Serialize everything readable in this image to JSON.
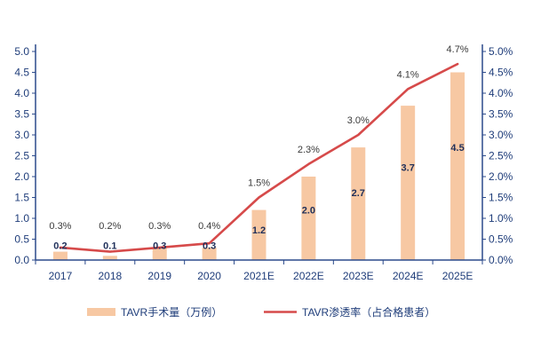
{
  "chart_data": {
    "type": "bar",
    "categories": [
      "2017",
      "2018",
      "2019",
      "2020",
      "2021E",
      "2022E",
      "2023E",
      "2024E",
      "2025E"
    ],
    "series": [
      {
        "name": "TAVR手术量（万例）",
        "type": "bar",
        "axis": "left",
        "values": [
          0.2,
          0.1,
          0.3,
          0.3,
          1.2,
          2.0,
          2.7,
          3.7,
          4.5
        ],
        "labels": [
          "0.2",
          "0.1",
          "0.3",
          "0.3",
          "1.2",
          "2.0",
          "2.7",
          "3.7",
          "4.5"
        ],
        "color": "#f7c8a3"
      },
      {
        "name": "TAVR渗透率（占合格患者）",
        "type": "line",
        "axis": "right",
        "values": [
          0.3,
          0.2,
          0.3,
          0.4,
          1.5,
          2.3,
          3.0,
          4.1,
          4.7
        ],
        "labels": [
          "0.3%",
          "0.2%",
          "0.3%",
          "0.4%",
          "1.5%",
          "2.3%",
          "3.0%",
          "4.1%",
          "4.7%"
        ],
        "color": "#d64a4a"
      }
    ],
    "y_left": {
      "ylim": [
        0,
        5
      ],
      "ticks": [
        "0.0",
        "0.5",
        "1.0",
        "1.5",
        "2.0",
        "2.5",
        "3.0",
        "3.5",
        "4.0",
        "4.5",
        "5.0"
      ]
    },
    "y_right": {
      "ylim": [
        0,
        5
      ],
      "ticks": [
        "0.0%",
        "0.5%",
        "1.0%",
        "1.5%",
        "2.0%",
        "2.5%",
        "3.0%",
        "3.5%",
        "4.0%",
        "4.5%",
        "5.0%"
      ]
    },
    "grid": false,
    "legend": "bottom",
    "axis_color": "#2b4a8b"
  }
}
